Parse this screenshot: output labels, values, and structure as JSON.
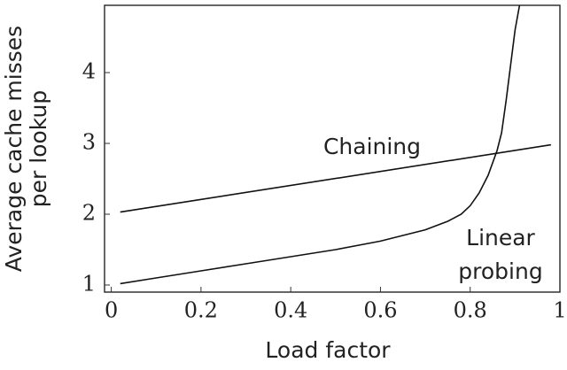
{
  "chart_data": {
    "type": "line",
    "xlabel": "Load factor",
    "ylabel": "Average cache misses per lookup",
    "series": [
      {
        "name": "Chaining",
        "color": "#111111",
        "x": [
          0.02,
          0.98
        ],
        "values": [
          2.03,
          2.98
        ]
      },
      {
        "name": "Linear probing",
        "color": "#111111",
        "x": [
          0.02,
          0.1,
          0.2,
          0.3,
          0.4,
          0.5,
          0.6,
          0.65,
          0.7,
          0.75,
          0.78,
          0.8,
          0.82,
          0.84,
          0.86,
          0.87,
          0.88,
          0.89,
          0.9,
          0.91
        ],
        "values": [
          1.02,
          1.1,
          1.2,
          1.3,
          1.4,
          1.5,
          1.62,
          1.7,
          1.78,
          1.9,
          2.0,
          2.12,
          2.3,
          2.55,
          2.9,
          3.15,
          3.6,
          4.1,
          4.6,
          4.95
        ]
      }
    ],
    "xlim": [
      -0.015,
      1.0
    ],
    "ylim": [
      0.9,
      4.95
    ],
    "xticks": [
      0,
      0.2,
      0.4,
      0.6,
      0.8,
      1
    ],
    "yticks": [
      1,
      2,
      3,
      4
    ]
  }
}
